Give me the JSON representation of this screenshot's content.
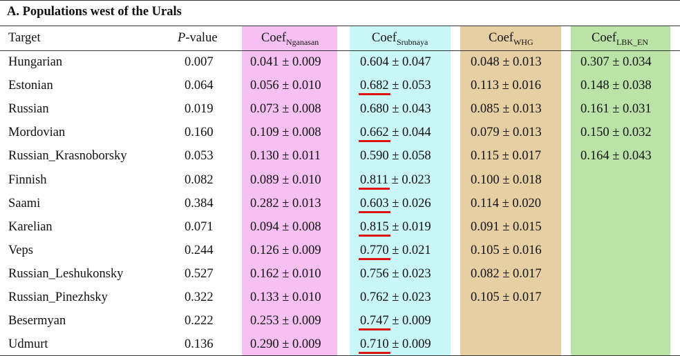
{
  "section_title": "A. Populations west of the Urals",
  "headers": {
    "target": "Target",
    "p_italic": "P",
    "p_rest": "-value",
    "coef": "Coef",
    "ng_sub": "Nganasan",
    "sr_sub": "Srubnaya",
    "whg_sub": "WHG",
    "lbk_sub": "LBK_EN"
  },
  "colors": {
    "nganasan_band": "#f6c1f2",
    "srubnaya_band": "#c9f7f8",
    "whg_band": "#e5cfa3",
    "lbk_band": "#bbe3a7",
    "underline": "#e01010"
  },
  "rows": [
    {
      "target": "Hungarian",
      "p": "0.007",
      "ng": "0.041 ± 0.009",
      "sr_val": "0.604",
      "sr_err": " ± 0.047",
      "sr_hl": false,
      "whg": "0.048 ± 0.013",
      "lbk": "0.307 ± 0.034"
    },
    {
      "target": "Estonian",
      "p": "0.064",
      "ng": "0.056 ± 0.010",
      "sr_val": "0.682",
      "sr_err": " ± 0.053",
      "sr_hl": true,
      "whg": "0.113 ± 0.016",
      "lbk": "0.148 ± 0.038"
    },
    {
      "target": "Russian",
      "p": "0.019",
      "ng": "0.073 ± 0.008",
      "sr_val": "0.680",
      "sr_err": " ± 0.043",
      "sr_hl": false,
      "whg": "0.085 ± 0.013",
      "lbk": "0.161 ± 0.031"
    },
    {
      "target": "Mordovian",
      "p": "0.160",
      "ng": "0.109 ± 0.008",
      "sr_val": "0.662",
      "sr_err": " ± 0.044",
      "sr_hl": true,
      "whg": "0.079 ± 0.013",
      "lbk": "0.150 ± 0.032"
    },
    {
      "target": "Russian_Krasnoborsky",
      "p": "0.053",
      "ng": "0.130 ± 0.011",
      "sr_val": "0.590",
      "sr_err": " ± 0.058",
      "sr_hl": false,
      "whg": "0.115 ± 0.017",
      "lbk": "0.164 ± 0.043"
    },
    {
      "target": "Finnish",
      "p": "0.082",
      "ng": "0.089 ± 0.010",
      "sr_val": "0.811",
      "sr_err": " ± 0.023",
      "sr_hl": true,
      "whg": "0.100 ± 0.018",
      "lbk": ""
    },
    {
      "target": "Saami",
      "p": "0.384",
      "ng": "0.282 ± 0.013",
      "sr_val": "0.603",
      "sr_err": " ± 0.026",
      "sr_hl": true,
      "whg": "0.114 ± 0.020",
      "lbk": ""
    },
    {
      "target": "Karelian",
      "p": "0.071",
      "ng": "0.094 ± 0.008",
      "sr_val": "0.815",
      "sr_err": " ± 0.019",
      "sr_hl": true,
      "whg": "0.091 ± 0.015",
      "lbk": ""
    },
    {
      "target": "Veps",
      "p": "0.244",
      "ng": "0.126 ± 0.009",
      "sr_val": "0.770",
      "sr_err": " ± 0.021",
      "sr_hl": true,
      "whg": "0.105 ± 0.016",
      "lbk": ""
    },
    {
      "target": "Russian_Leshukonsky",
      "p": "0.527",
      "ng": "0.162 ± 0.010",
      "sr_val": "0.756",
      "sr_err": " ± 0.023",
      "sr_hl": false,
      "whg": "0.082 ± 0.017",
      "lbk": ""
    },
    {
      "target": "Russian_Pinezhsky",
      "p": "0.322",
      "ng": "0.133 ± 0.010",
      "sr_val": "0.762",
      "sr_err": " ± 0.023",
      "sr_hl": false,
      "whg": "0.105 ± 0.017",
      "lbk": ""
    },
    {
      "target": "Besermyan",
      "p": "0.222",
      "ng": "0.253 ± 0.009",
      "sr_val": "0.747",
      "sr_err": " ± 0.009",
      "sr_hl": true,
      "whg": "",
      "lbk": ""
    },
    {
      "target": "Udmurt",
      "p": "0.136",
      "ng": "0.290 ± 0.009",
      "sr_val": "0.710",
      "sr_err": " ± 0.009",
      "sr_hl": true,
      "whg": "",
      "lbk": ""
    }
  ]
}
